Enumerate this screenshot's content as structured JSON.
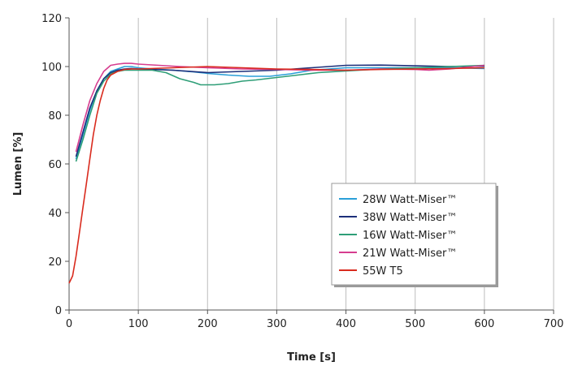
{
  "chart_data": {
    "type": "line",
    "xlabel": "Time [s]",
    "ylabel": "Lumen [%]",
    "xlim": [
      0,
      700
    ],
    "ylim": [
      0,
      120
    ],
    "xticks": [
      0,
      100,
      200,
      300,
      400,
      500,
      600,
      700
    ],
    "yticks": [
      0,
      20,
      40,
      60,
      80,
      100,
      120
    ],
    "grid": "vertical",
    "legend_position": "lower-right",
    "series": [
      {
        "name": "28W Watt-Miser™",
        "color": "#2a9fd8",
        "points": [
          [
            10,
            62
          ],
          [
            20,
            72
          ],
          [
            30,
            82
          ],
          [
            40,
            90
          ],
          [
            50,
            95
          ],
          [
            60,
            98
          ],
          [
            70,
            99
          ],
          [
            80,
            100
          ],
          [
            90,
            100
          ],
          [
            100,
            99.5
          ],
          [
            120,
            99
          ],
          [
            150,
            98.5
          ],
          [
            180,
            97.8
          ],
          [
            200,
            97.2
          ],
          [
            230,
            96.5
          ],
          [
            260,
            96
          ],
          [
            290,
            96
          ],
          [
            320,
            97
          ],
          [
            350,
            98.5
          ],
          [
            400,
            99.5
          ],
          [
            450,
            99.5
          ],
          [
            500,
            99.5
          ],
          [
            550,
            99.5
          ],
          [
            600,
            99.2
          ]
        ]
      },
      {
        "name": "38W Watt-Miser™",
        "color": "#1c2f7a",
        "points": [
          [
            10,
            63
          ],
          [
            20,
            73
          ],
          [
            30,
            83
          ],
          [
            40,
            90
          ],
          [
            50,
            95
          ],
          [
            60,
            97.5
          ],
          [
            70,
            98.5
          ],
          [
            80,
            99
          ],
          [
            90,
            99.2
          ],
          [
            100,
            99
          ],
          [
            150,
            98.5
          ],
          [
            200,
            97.5
          ],
          [
            250,
            98
          ],
          [
            300,
            98.5
          ],
          [
            350,
            99.5
          ],
          [
            400,
            100.5
          ],
          [
            450,
            100.6
          ],
          [
            500,
            100.3
          ],
          [
            550,
            100
          ],
          [
            600,
            100.2
          ]
        ]
      },
      {
        "name": "16W Watt-Miser™",
        "color": "#2e9e77",
        "points": [
          [
            10,
            61
          ],
          [
            20,
            70
          ],
          [
            30,
            80
          ],
          [
            40,
            89
          ],
          [
            50,
            94
          ],
          [
            60,
            97
          ],
          [
            70,
            98
          ],
          [
            80,
            98.5
          ],
          [
            100,
            98.5
          ],
          [
            120,
            98.5
          ],
          [
            140,
            97.5
          ],
          [
            160,
            95
          ],
          [
            180,
            93.5
          ],
          [
            190,
            92.5
          ],
          [
            210,
            92.5
          ],
          [
            230,
            93
          ],
          [
            250,
            94
          ],
          [
            270,
            94.5
          ],
          [
            300,
            95.5
          ],
          [
            330,
            96.5
          ],
          [
            360,
            97.5
          ],
          [
            400,
            98.2
          ],
          [
            450,
            99
          ],
          [
            500,
            99.5
          ],
          [
            550,
            100
          ],
          [
            600,
            100.5
          ]
        ]
      },
      {
        "name": "21W Watt-Miser™",
        "color": "#d63d8f",
        "points": [
          [
            10,
            65
          ],
          [
            20,
            76
          ],
          [
            30,
            86
          ],
          [
            40,
            93
          ],
          [
            50,
            98
          ],
          [
            60,
            100.5
          ],
          [
            70,
            101
          ],
          [
            80,
            101.3
          ],
          [
            90,
            101.3
          ],
          [
            100,
            101
          ],
          [
            130,
            100.5
          ],
          [
            160,
            100
          ],
          [
            200,
            99.5
          ],
          [
            250,
            99
          ],
          [
            300,
            98.8
          ],
          [
            350,
            98.5
          ],
          [
            400,
            98.5
          ],
          [
            450,
            99
          ],
          [
            500,
            98.8
          ],
          [
            520,
            98.5
          ],
          [
            550,
            99
          ],
          [
            600,
            100.5
          ]
        ]
      },
      {
        "name": "55W T5",
        "color": "#d92b1e",
        "points": [
          [
            0,
            11
          ],
          [
            5,
            14
          ],
          [
            10,
            22
          ],
          [
            15,
            32
          ],
          [
            20,
            42
          ],
          [
            25,
            52
          ],
          [
            30,
            62
          ],
          [
            35,
            72
          ],
          [
            40,
            80
          ],
          [
            45,
            86
          ],
          [
            50,
            91
          ],
          [
            55,
            94.5
          ],
          [
            60,
            96.5
          ],
          [
            70,
            98
          ],
          [
            80,
            98.8
          ],
          [
            90,
            99
          ],
          [
            100,
            99
          ],
          [
            150,
            99.5
          ],
          [
            200,
            100
          ],
          [
            250,
            99.5
          ],
          [
            300,
            99
          ],
          [
            350,
            98.8
          ],
          [
            400,
            98.5
          ],
          [
            450,
            98.8
          ],
          [
            500,
            99
          ],
          [
            550,
            99.2
          ],
          [
            600,
            99.5
          ]
        ]
      }
    ]
  }
}
